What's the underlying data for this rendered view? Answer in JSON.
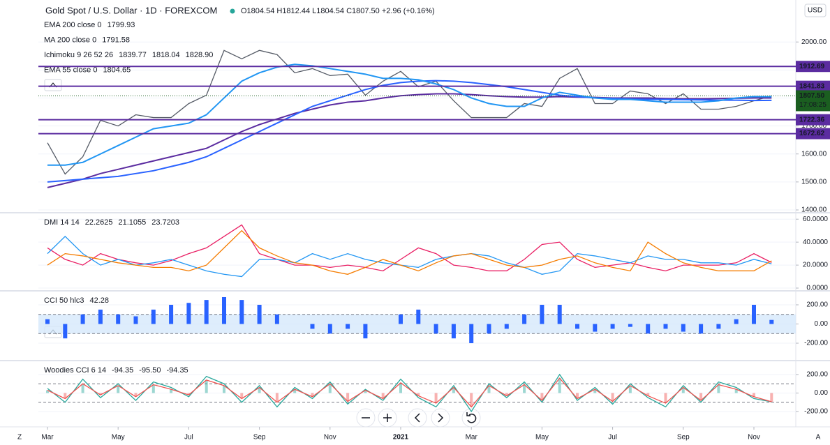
{
  "header": {
    "symbol": "Gold Spot / U.S. Dollar · 1D · FOREXCOM",
    "ohlc": "O1804.54 H1812.44 L1804.54 C1807.50 +2.96 (+0.16%)",
    "currency": "USD",
    "scale_auto": "A",
    "scale_z": "Z"
  },
  "chart_data": [
    {
      "type": "line",
      "categories": [
        "Mar",
        null,
        null,
        null,
        "May",
        null,
        null,
        null,
        "Jul",
        null,
        null,
        null,
        "Sep",
        null,
        null,
        null,
        "Nov",
        null,
        null,
        null,
        "2021",
        null,
        null,
        null,
        "Mar",
        null,
        null,
        null,
        "May",
        null,
        null,
        null,
        "Jul",
        null,
        null,
        null,
        "Sep",
        null,
        null,
        null,
        "Nov",
        null
      ],
      "series": [
        {
          "color": "#555b66",
          "values": [
            1640,
            1528,
            1590,
            1720,
            1700,
            1740,
            1730,
            1730,
            1780,
            1810,
            1970,
            1940,
            1970,
            1955,
            1890,
            1905,
            1880,
            1885,
            1810,
            1860,
            1895,
            1840,
            1860,
            1790,
            1730,
            1730,
            1730,
            1780,
            1770,
            1870,
            1905,
            1780,
            1780,
            1825,
            1815,
            1780,
            1815,
            1760,
            1760,
            1770,
            1790,
            1807.5
          ]
        },
        {
          "name": "EMA 200 close 0",
          "color": "#5b2ca0",
          "values": [
            1480,
            1495,
            1510,
            1530,
            1545,
            1560,
            1575,
            1590,
            1605,
            1620,
            1650,
            1680,
            1705,
            1725,
            1745,
            1760,
            1775,
            1785,
            1790,
            1800,
            1808,
            1812,
            1815,
            1815,
            1812,
            1808,
            1805,
            1803,
            1803,
            1805,
            1803,
            1802,
            1800,
            1800,
            1800,
            1798,
            1797,
            1797,
            1798,
            1799,
            1800,
            1799.93
          ]
        },
        {
          "name": "MA 200 close 0",
          "color": "#2962ff",
          "values": [
            1500,
            1505,
            1510,
            1515,
            1520,
            1530,
            1540,
            1555,
            1570,
            1590,
            1620,
            1650,
            1680,
            1710,
            1740,
            1770,
            1790,
            1810,
            1830,
            1845,
            1855,
            1860,
            1862,
            1860,
            1855,
            1848,
            1840,
            1830,
            1820,
            1810,
            1805,
            1800,
            1798,
            1796,
            1795,
            1795,
            1794,
            1793,
            1792,
            1792,
            1791,
            1791.58
          ]
        },
        {
          "name": "EMA 55 close 0",
          "color": "#2196f3",
          "values": [
            1560,
            1560,
            1570,
            1600,
            1630,
            1660,
            1690,
            1700,
            1710,
            1740,
            1800,
            1860,
            1890,
            1910,
            1920,
            1915,
            1905,
            1895,
            1885,
            1870,
            1870,
            1865,
            1850,
            1830,
            1800,
            1780,
            1770,
            1770,
            1800,
            1820,
            1810,
            1800,
            1795,
            1795,
            1790,
            1785,
            1785,
            1785,
            1790,
            1800,
            1805,
            1804.65
          ]
        }
      ],
      "ichimoku": {
        "name": "Ichimoku 9 26 52 26",
        "labels": [
          {
            "text": "1839.77",
            "color": "#2962ff"
          },
          {
            "text": "1818.04",
            "color": "#b71c1c"
          },
          {
            "text": "1828.90",
            "color": "#43a047"
          }
        ]
      },
      "hlines": [
        {
          "value": 1912.69,
          "color": "#5b2ca0"
        },
        {
          "value": 1841.83,
          "color": "#5b2ca0"
        },
        {
          "value": 1722.36,
          "color": "#5b2ca0"
        },
        {
          "value": 1672.62,
          "color": "#5b2ca0"
        }
      ],
      "last_price": {
        "value": 1807.5,
        "label": "1807.50",
        "color": "#1b5e20"
      },
      "countdown": "17:08:25",
      "ylim": [
        1390,
        2150
      ],
      "yticks": [
        {
          "value": 2000,
          "label": "2000.00"
        },
        {
          "value": 1900,
          "label": "1900.00"
        },
        {
          "value": 1800,
          "label": "1800.00"
        },
        {
          "value": 1700,
          "label": "1700.00"
        },
        {
          "value": 1600,
          "label": "1600.00"
        },
        {
          "value": 1500,
          "label": "1500.00"
        },
        {
          "value": 1400,
          "label": "1400.00"
        }
      ]
    },
    {
      "type": "line",
      "title": "DMI 14 14",
      "series": [
        {
          "color": "#e91e63",
          "values": [
            35,
            25,
            20,
            30,
            25,
            22,
            20,
            24,
            30,
            35,
            45,
            55,
            30,
            25,
            20,
            20,
            18,
            20,
            18,
            15,
            25,
            35,
            30,
            20,
            18,
            15,
            15,
            25,
            38,
            40,
            25,
            18,
            20,
            22,
            18,
            15,
            20,
            20,
            20,
            22,
            30,
            22.2625
          ]
        },
        {
          "color": "#2196f3",
          "values": [
            30,
            45,
            30,
            20,
            25,
            20,
            22,
            25,
            20,
            15,
            12,
            10,
            25,
            25,
            22,
            30,
            25,
            30,
            25,
            22,
            20,
            18,
            25,
            28,
            30,
            28,
            22,
            18,
            12,
            15,
            30,
            28,
            25,
            22,
            28,
            25,
            25,
            22,
            22,
            20,
            25,
            21.1055
          ]
        },
        {
          "color": "#f57c00",
          "values": [
            20,
            30,
            28,
            25,
            22,
            20,
            18,
            18,
            15,
            20,
            35,
            50,
            35,
            28,
            22,
            20,
            15,
            12,
            18,
            25,
            20,
            15,
            22,
            28,
            30,
            25,
            20,
            18,
            20,
            25,
            28,
            22,
            18,
            15,
            40,
            30,
            22,
            18,
            15,
            15,
            15,
            23.7203
          ]
        }
      ],
      "ylim": [
        -1.2,
        65
      ],
      "yticks": [
        {
          "value": 60,
          "label": "60.0000"
        },
        {
          "value": 40,
          "label": "40.0000"
        },
        {
          "value": 20,
          "label": "20.0000"
        },
        {
          "value": 0,
          "label": "0.0000"
        }
      ]
    },
    {
      "type": "bar",
      "title": "CCI 50 hlc3",
      "color": "#2962ff",
      "values": [
        50,
        -150,
        100,
        150,
        100,
        80,
        150,
        200,
        220,
        250,
        280,
        250,
        200,
        100,
        0,
        -50,
        -100,
        -50,
        -150,
        0,
        100,
        150,
        -100,
        -150,
        -200,
        -100,
        -50,
        100,
        200,
        200,
        -50,
        -80,
        -50,
        -30,
        -100,
        -50,
        -80,
        -100,
        -50,
        50,
        200,
        42.28
      ],
      "band": [
        -100,
        100
      ],
      "ylim": [
        -367,
        338
      ],
      "yticks": [
        {
          "value": 200,
          "label": "200.00"
        },
        {
          "value": 0,
          "label": "0.00"
        },
        {
          "value": -200,
          "label": "-200.00"
        }
      ]
    },
    {
      "type": "line",
      "title": "Woodies CCI 6 14",
      "series": [
        {
          "style": "histogram",
          "color": "#787b86",
          "values": [
            30,
            -60,
            100,
            -20,
            80,
            -40,
            90,
            40,
            -20,
            140,
            80,
            -60,
            60,
            -100,
            40,
            -40,
            100,
            -90,
            30,
            -60,
            110,
            -30,
            -110,
            60,
            -150,
            80,
            -30,
            90,
            -80,
            160,
            -60,
            40,
            -90,
            80,
            -30,
            -110,
            60,
            -80,
            90,
            40,
            -40,
            -94.35
          ]
        },
        {
          "color": "#26a69a",
          "values": [
            50,
            -100,
            150,
            -50,
            100,
            -80,
            120,
            60,
            -40,
            180,
            100,
            -100,
            80,
            -150,
            60,
            -60,
            120,
            -120,
            40,
            -80,
            150,
            -50,
            -150,
            80,
            -200,
            100,
            -50,
            120,
            -100,
            200,
            -80,
            60,
            -120,
            100,
            -50,
            -150,
            80,
            -100,
            120,
            60,
            -60,
            -95.5
          ],
          "value_labels": [
            null,
            null,
            null,
            null,
            null,
            null,
            null,
            null,
            null,
            null,
            null,
            null,
            null,
            null,
            null,
            null,
            null,
            null,
            null,
            null,
            null,
            null,
            null,
            null,
            null,
            null,
            null,
            null,
            null,
            null,
            null,
            null,
            null,
            null,
            null,
            null,
            null,
            null,
            null,
            null,
            null,
            "-95.50"
          ]
        },
        {
          "color": "#ef5350",
          "values": [
            30,
            -60,
            100,
            -20,
            80,
            -40,
            90,
            40,
            -20,
            140,
            80,
            -60,
            60,
            -100,
            40,
            -40,
            100,
            -90,
            30,
            -60,
            110,
            -30,
            -110,
            60,
            -150,
            80,
            -30,
            90,
            -80,
            160,
            -60,
            40,
            -90,
            80,
            -30,
            -110,
            60,
            -80,
            90,
            40,
            -40,
            -94.35
          ]
        }
      ],
      "band": [
        -100,
        100
      ],
      "ylim": [
        -351,
        343
      ],
      "yticks": [
        {
          "value": 200,
          "label": "200.00"
        },
        {
          "value": 0,
          "label": "0.00"
        },
        {
          "value": -200,
          "label": "-200.00"
        }
      ]
    }
  ]
}
